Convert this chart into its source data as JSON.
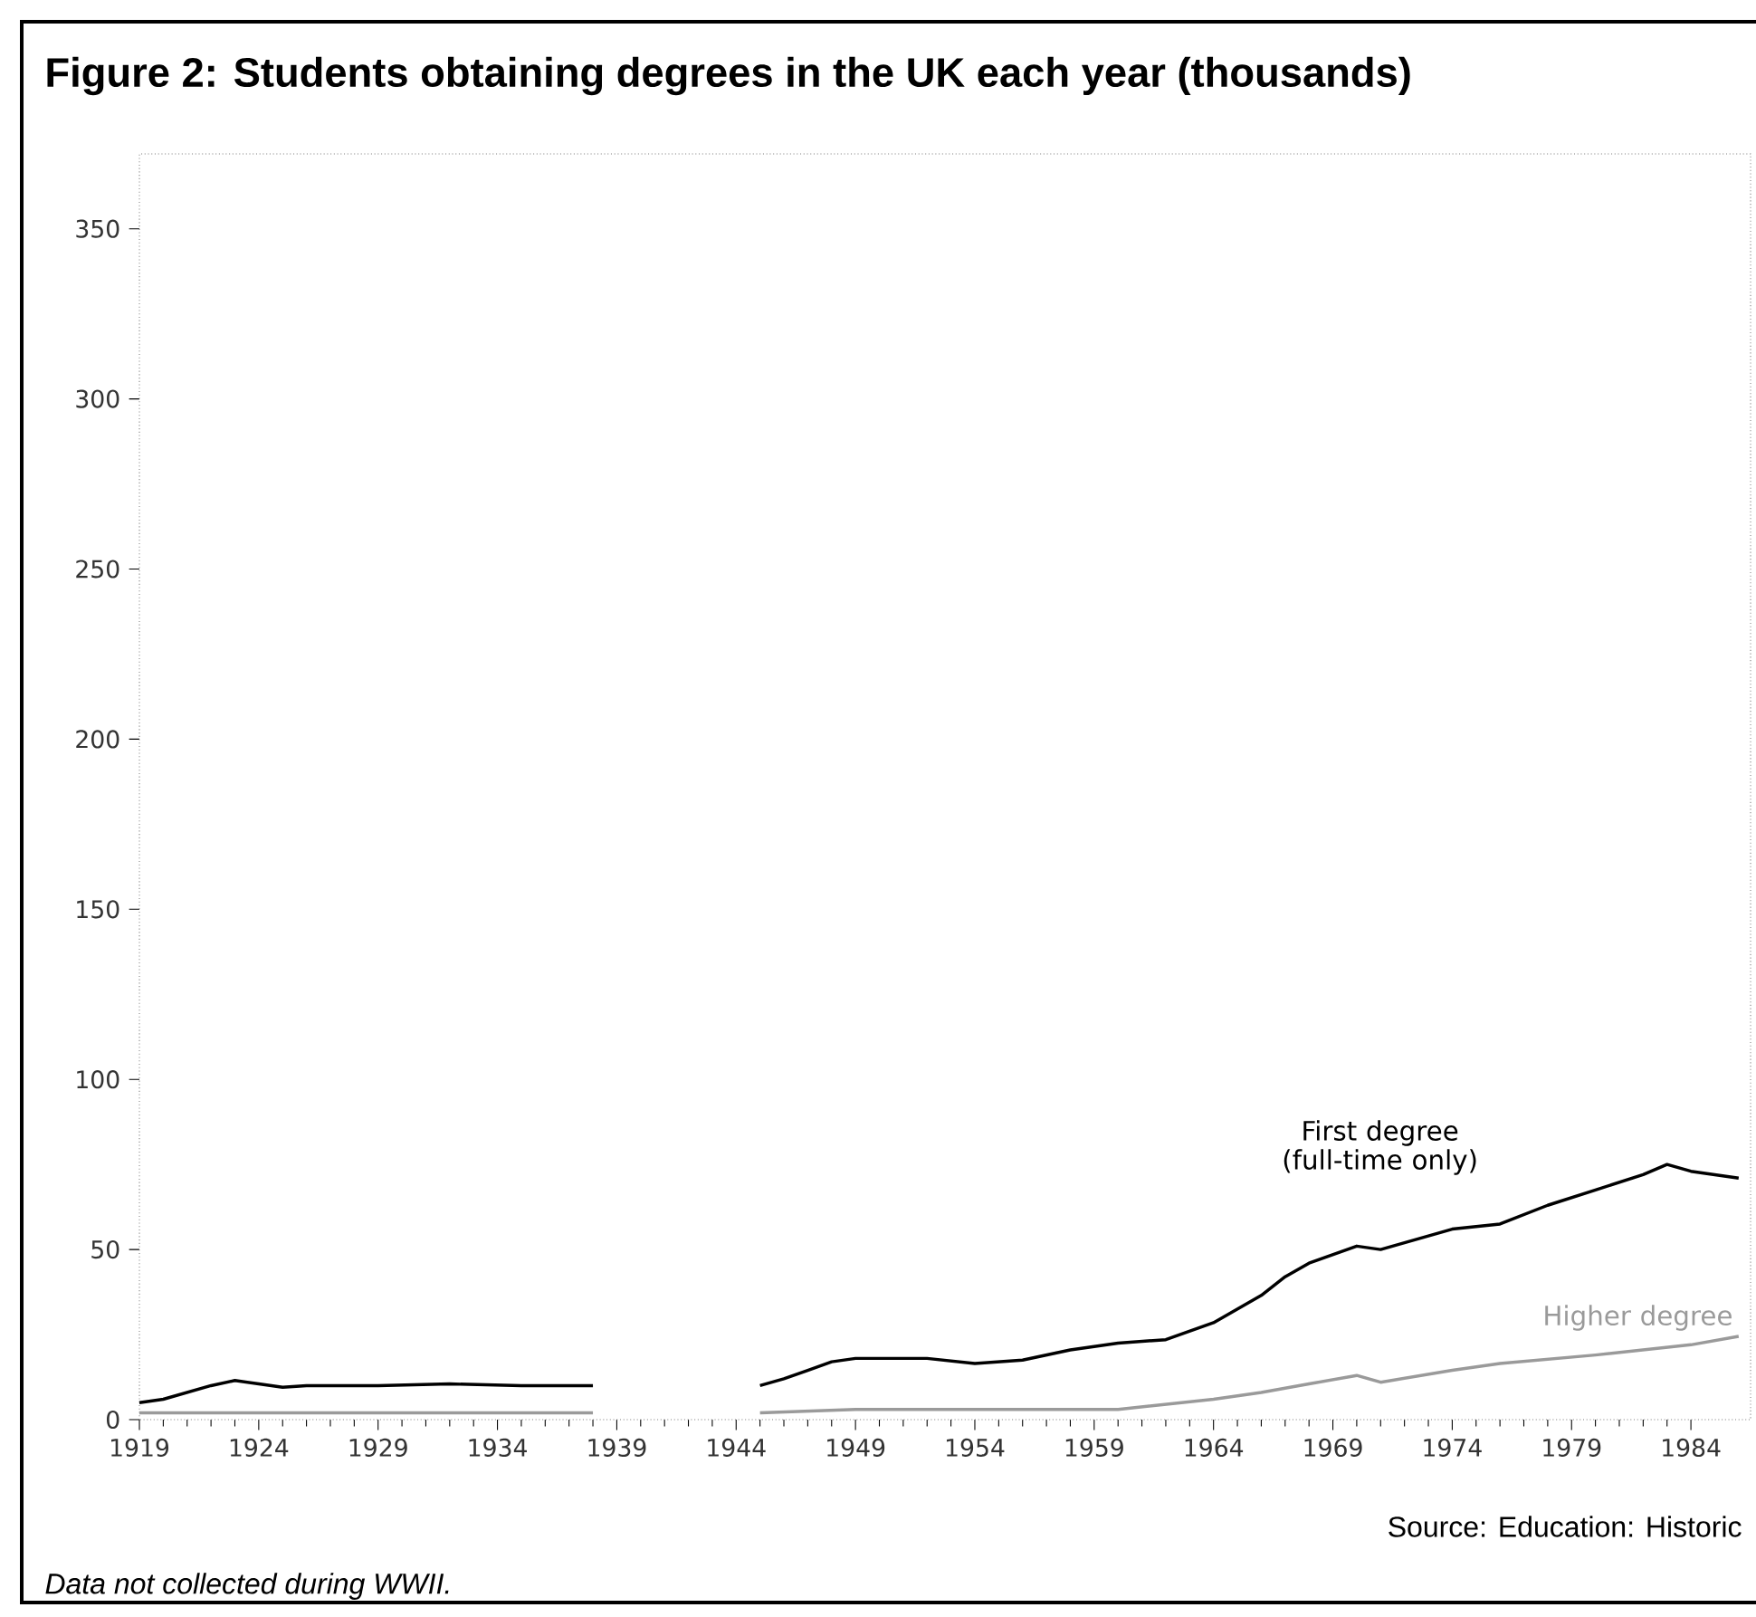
{
  "chart_data": {
    "type": "line",
    "title": "Figure 2: Students obtaining degrees in the UK each year (thousands)",
    "annotations": [
      "Source: Education: Historic",
      "Data not collected during WWII."
    ],
    "xlim": [
      1919,
      1986.5
    ],
    "ylim": [
      0,
      372
    ],
    "xticks": [
      1919,
      1924,
      1929,
      1934,
      1939,
      1944,
      1949,
      1954,
      1959,
      1964,
      1969,
      1974,
      1979,
      1984
    ],
    "yticks": [
      0,
      50,
      100,
      150,
      200,
      250,
      300,
      350
    ],
    "series": [
      {
        "name": "First degree (full-time only)",
        "color": "#000000",
        "x": [
          1919,
          1920,
          1921,
          1922,
          1923,
          1924,
          1925,
          1926,
          1929,
          1932,
          1935,
          1938,
          1939,
          1945,
          1946,
          1947,
          1948,
          1949,
          1952,
          1954,
          1956,
          1958,
          1960,
          1962,
          1964,
          1966,
          1967,
          1968,
          1970,
          1971,
          1972,
          1974,
          1976,
          1978,
          1980,
          1982,
          1983,
          1984,
          1986
        ],
        "values": [
          5,
          6,
          8,
          10,
          11.5,
          10.5,
          9.5,
          10,
          10,
          10.5,
          10,
          10,
          null,
          10,
          12,
          14.5,
          17,
          18,
          18,
          16.5,
          17.5,
          20.5,
          22.5,
          23.5,
          28.5,
          36.5,
          42,
          46,
          51,
          50,
          52,
          56,
          57.5,
          63,
          67.5,
          72,
          75,
          73,
          71
        ]
      },
      {
        "name": "Higher degree",
        "color": "#9a9a9a",
        "x": [
          1919,
          1924,
          1929,
          1934,
          1938,
          1939,
          1945,
          1949,
          1954,
          1960,
          1964,
          1966,
          1968,
          1970,
          1971,
          1974,
          1976,
          1980,
          1984,
          1986
        ],
        "values": [
          2,
          2,
          2,
          2,
          2,
          null,
          2,
          3,
          3,
          3,
          6,
          8,
          10.5,
          13,
          11,
          14.5,
          16.5,
          19,
          22,
          24.5
        ]
      }
    ]
  }
}
